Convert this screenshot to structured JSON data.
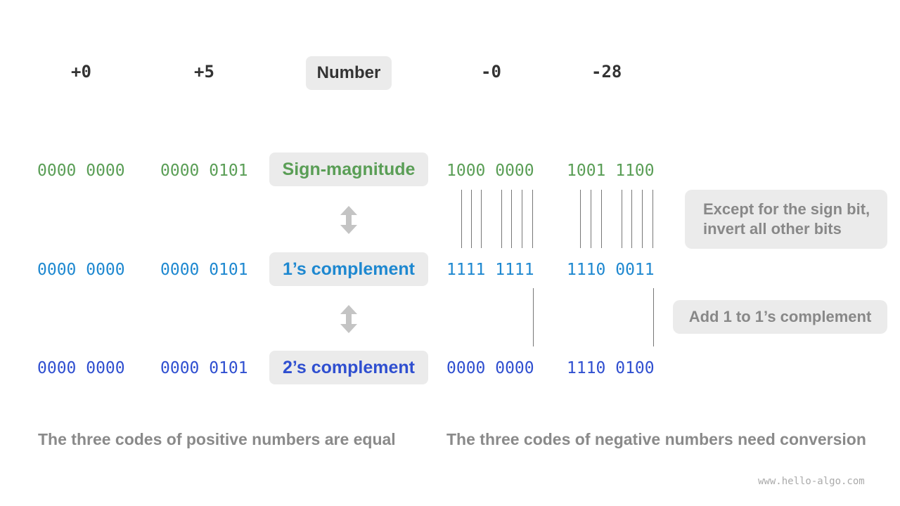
{
  "headers": {
    "pos0": "+0",
    "pos5": "+5",
    "number": "Number",
    "neg0": "-0",
    "neg28": "-28"
  },
  "rows": [
    {
      "label": "Sign-magnitude",
      "pos0": "0000 0000",
      "pos5": "0000 0101",
      "neg0": "1000 0000",
      "neg28": "1001 1100",
      "color": "#5a9e56"
    },
    {
      "label": "1’s complement",
      "pos0": "0000 0000",
      "pos5": "0000 0101",
      "neg0": "1111 1111",
      "neg28": "1110 0011",
      "color": "#1e88d0"
    },
    {
      "label": "2’s complement",
      "pos0": "0000 0000",
      "pos5": "0000 0101",
      "neg0": "0000 0000",
      "neg28": "1110 0100",
      "color": "#2f4fd0"
    }
  ],
  "notes": {
    "invert_line1": "Except for the sign bit,",
    "invert_line2": "invert all other bits",
    "add_one": "Add 1 to 1’s complement"
  },
  "footer": {
    "positive": "The three codes of positive numbers are equal",
    "negative": "The three codes of negative numbers need conversion",
    "watermark": "www.hello-algo.com"
  }
}
